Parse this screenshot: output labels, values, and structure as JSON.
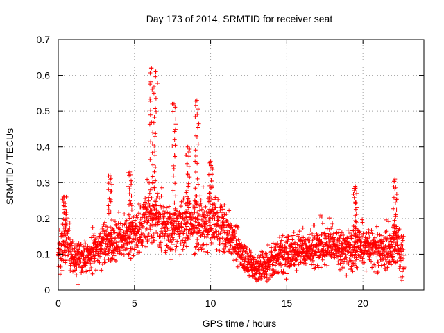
{
  "chart_data": {
    "type": "scatter",
    "title": "Day 173 of 2014, SRMTID for receiver seat",
    "xlabel": "GPS time / hours",
    "ylabel": "SRMTID / TECUs",
    "xlim": [
      0,
      24
    ],
    "ylim": [
      0,
      0.7
    ],
    "xticks": [
      0,
      5,
      10,
      15,
      20
    ],
    "xtick_labels": [
      "0",
      "5",
      "10",
      "15",
      "20"
    ],
    "yticks": [
      0,
      0.1,
      0.2,
      0.3,
      0.4,
      0.5,
      0.6,
      0.7
    ],
    "ytick_labels": [
      "0",
      "0.1",
      "0.2",
      "0.3",
      "0.4",
      "0.5",
      "0.6",
      "0.7"
    ],
    "grid": true,
    "marker": "+",
    "marker_color": "#ff0000",
    "x_data_range": [
      0,
      22.7
    ],
    "series": [
      {
        "name": "SRMTID",
        "color": "#ff0000",
        "profile": [
          {
            "x": 0.0,
            "y": 0.1,
            "spread": 0.05
          },
          {
            "x": 0.5,
            "y": 0.15,
            "spread": 0.07
          },
          {
            "x": 1.0,
            "y": 0.09,
            "spread": 0.04
          },
          {
            "x": 2.0,
            "y": 0.09,
            "spread": 0.04
          },
          {
            "x": 3.0,
            "y": 0.13,
            "spread": 0.05
          },
          {
            "x": 4.0,
            "y": 0.14,
            "spread": 0.05
          },
          {
            "x": 5.0,
            "y": 0.15,
            "spread": 0.06
          },
          {
            "x": 6.0,
            "y": 0.22,
            "spread": 0.08
          },
          {
            "x": 7.0,
            "y": 0.17,
            "spread": 0.06
          },
          {
            "x": 8.0,
            "y": 0.18,
            "spread": 0.06
          },
          {
            "x": 9.0,
            "y": 0.19,
            "spread": 0.07
          },
          {
            "x": 10.0,
            "y": 0.2,
            "spread": 0.07
          },
          {
            "x": 11.0,
            "y": 0.17,
            "spread": 0.06
          },
          {
            "x": 12.0,
            "y": 0.1,
            "spread": 0.04
          },
          {
            "x": 13.0,
            "y": 0.06,
            "spread": 0.03
          },
          {
            "x": 14.0,
            "y": 0.08,
            "spread": 0.04
          },
          {
            "x": 15.0,
            "y": 0.1,
            "spread": 0.05
          },
          {
            "x": 16.0,
            "y": 0.11,
            "spread": 0.05
          },
          {
            "x": 17.0,
            "y": 0.12,
            "spread": 0.05
          },
          {
            "x": 18.0,
            "y": 0.13,
            "spread": 0.05
          },
          {
            "x": 19.0,
            "y": 0.11,
            "spread": 0.05
          },
          {
            "x": 20.0,
            "y": 0.13,
            "spread": 0.05
          },
          {
            "x": 21.0,
            "y": 0.1,
            "spread": 0.05
          },
          {
            "x": 22.0,
            "y": 0.12,
            "spread": 0.06
          },
          {
            "x": 22.7,
            "y": 0.1,
            "spread": 0.05
          }
        ],
        "spikes": [
          {
            "x": 0.4,
            "peak": 0.26
          },
          {
            "x": 3.4,
            "peak": 0.32
          },
          {
            "x": 4.7,
            "peak": 0.33
          },
          {
            "x": 6.1,
            "peak": 0.62
          },
          {
            "x": 6.4,
            "peak": 0.61
          },
          {
            "x": 7.6,
            "peak": 0.52
          },
          {
            "x": 8.5,
            "peak": 0.4
          },
          {
            "x": 9.1,
            "peak": 0.53
          },
          {
            "x": 10.0,
            "peak": 0.36
          },
          {
            "x": 19.5,
            "peak": 0.29
          },
          {
            "x": 22.1,
            "peak": 0.31
          }
        ],
        "min_point": {
          "x": 1.3,
          "y": 0.015
        }
      }
    ]
  }
}
